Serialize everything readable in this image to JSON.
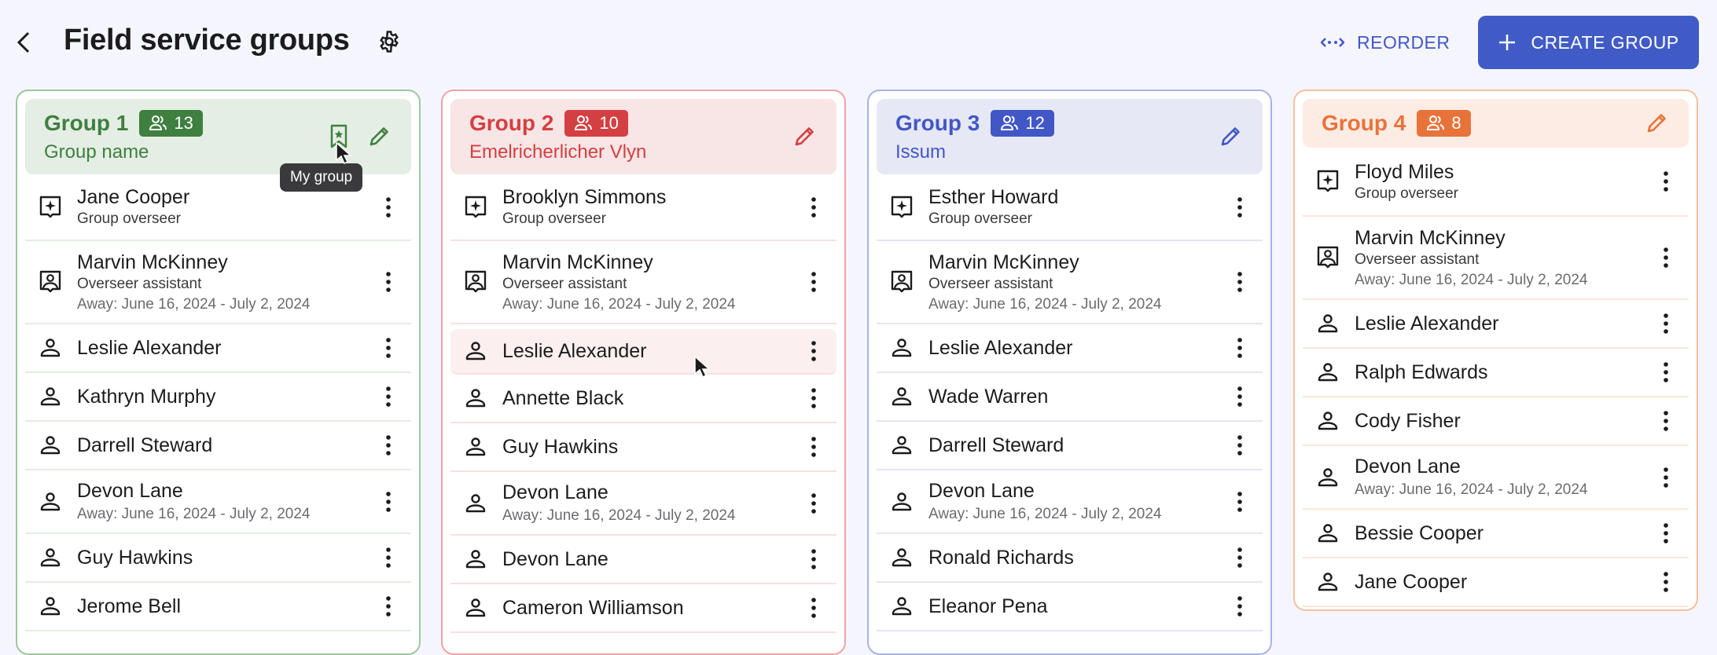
{
  "header": {
    "title": "Field service groups",
    "reorder_label": "REORDER",
    "create_label": "CREATE GROUP"
  },
  "tooltip": "My group",
  "groups": [
    {
      "title": "Group 1",
      "count": "13",
      "name": "Group name",
      "color": "#3f7f3f",
      "bg": "#e4eee4",
      "border": "#9cc79c",
      "divider": "#e2eee2",
      "my_group": true,
      "members": [
        {
          "name": "Jane Cooper",
          "role": "Group overseer",
          "icon": "overseer"
        },
        {
          "name": "Marvin McKinney",
          "role": "Overseer assistant",
          "away": "Away: June 16, 2024 - July 2, 2024",
          "icon": "assistant"
        },
        {
          "name": "Leslie Alexander",
          "icon": "person"
        },
        {
          "name": "Kathryn Murphy",
          "icon": "person"
        },
        {
          "name": "Darrell Steward",
          "icon": "person"
        },
        {
          "name": "Devon Lane",
          "away": "Away: June 16, 2024 - July 2, 2024",
          "icon": "person"
        },
        {
          "name": "Guy Hawkins",
          "icon": "person"
        },
        {
          "name": "Jerome Bell",
          "icon": "person"
        }
      ]
    },
    {
      "title": "Group 2",
      "count": "10",
      "name": "Emelricherlicher Vlyn",
      "color": "#d43f42",
      "bg": "#f8e5e5",
      "border": "#eea3a3",
      "divider": "#f8e0e0",
      "members": [
        {
          "name": "Brooklyn Simmons",
          "role": "Group overseer",
          "icon": "overseer"
        },
        {
          "name": "Marvin McKinney",
          "role": "Overseer assistant",
          "away": "Away: June 16, 2024 - July 2, 2024",
          "icon": "assistant"
        },
        {
          "name": "Leslie Alexander",
          "icon": "person",
          "hover": true
        },
        {
          "name": "Annette Black",
          "icon": "person"
        },
        {
          "name": "Guy Hawkins",
          "icon": "person"
        },
        {
          "name": "Devon Lane",
          "away": "Away: June 16, 2024 - July 2, 2024",
          "icon": "person"
        },
        {
          "name": "Devon Lane",
          "icon": "person"
        },
        {
          "name": "Cameron Williamson",
          "icon": "person"
        }
      ]
    },
    {
      "title": "Group 3",
      "count": "12",
      "name": "Issum",
      "color": "#4157c6",
      "bg": "#e7e8f5",
      "border": "#a9b2e6",
      "divider": "#e4e6f6",
      "members": [
        {
          "name": "Esther Howard",
          "role": "Group overseer",
          "icon": "overseer"
        },
        {
          "name": "Marvin McKinney",
          "role": "Overseer assistant",
          "away": "Away: June 16, 2024 - July 2, 2024",
          "icon": "assistant"
        },
        {
          "name": "Leslie Alexander",
          "icon": "person"
        },
        {
          "name": "Wade Warren",
          "icon": "person"
        },
        {
          "name": "Darrell Steward",
          "icon": "person"
        },
        {
          "name": "Devon Lane",
          "away": "Away: June 16, 2024 - July 2, 2024",
          "icon": "person"
        },
        {
          "name": "Ronald Richards",
          "icon": "person"
        },
        {
          "name": "Eleanor Pena",
          "icon": "person"
        }
      ]
    },
    {
      "title": "Group 4",
      "count": "8",
      "color": "#e8733a",
      "bg": "#fdece3",
      "border": "#f5bf9f",
      "divider": "#fce6da",
      "members": [
        {
          "name": "Floyd Miles",
          "role": "Group overseer",
          "icon": "overseer"
        },
        {
          "name": "Marvin McKinney",
          "role": "Overseer assistant",
          "away": "Away: June 16, 2024 - July 2, 2024",
          "icon": "assistant"
        },
        {
          "name": "Leslie Alexander",
          "icon": "person"
        },
        {
          "name": "Ralph Edwards",
          "icon": "person"
        },
        {
          "name": "Cody Fisher",
          "icon": "person"
        },
        {
          "name": "Devon Lane",
          "away": "Away: June 16, 2024 - July 2, 2024",
          "icon": "person"
        },
        {
          "name": "Bessie Cooper",
          "icon": "person"
        },
        {
          "name": "Jane Cooper",
          "icon": "person"
        }
      ]
    }
  ]
}
